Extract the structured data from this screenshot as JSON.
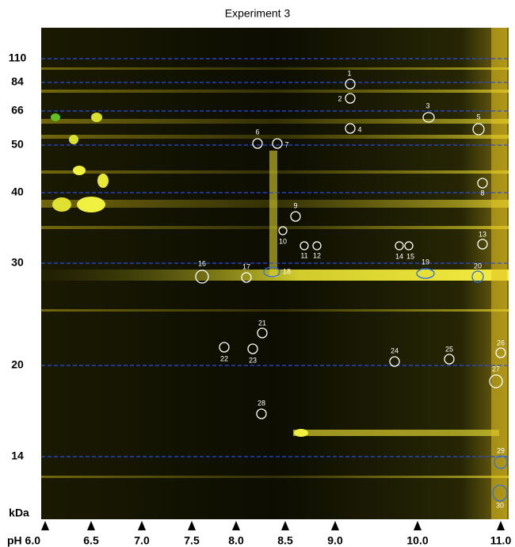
{
  "title": "Experiment 3",
  "mw_axis": {
    "unit": "kDa",
    "markers": [
      "110",
      "84",
      "66",
      "50",
      "40",
      "30",
      "20",
      "14"
    ]
  },
  "ph_axis": {
    "markers": [
      "pH 6.0",
      "6.5",
      "7.0",
      "7.5",
      "8.0",
      "8.5",
      "9.0",
      "10.0",
      "11.0"
    ]
  },
  "spots": [
    "1",
    "2",
    "3",
    "4",
    "5",
    "6",
    "7",
    "8",
    "9",
    "10",
    "11",
    "12",
    "13",
    "14",
    "15",
    "16",
    "17",
    "18",
    "19",
    "20",
    "21",
    "22",
    "23",
    "24",
    "25",
    "26",
    "27",
    "28",
    "29",
    "30"
  ]
}
